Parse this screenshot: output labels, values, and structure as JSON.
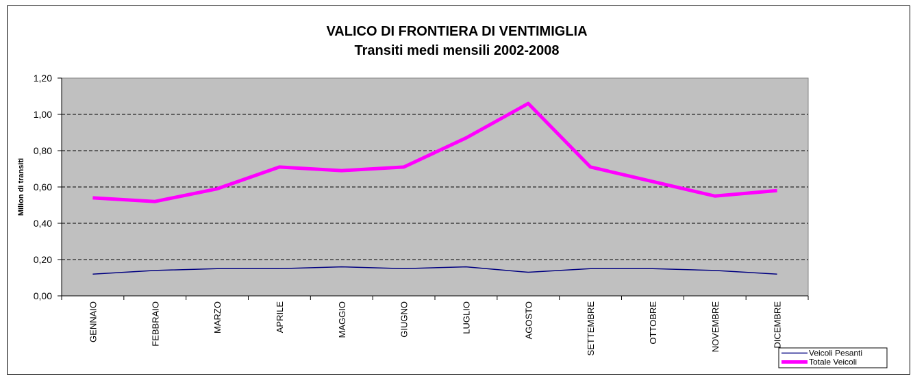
{
  "chart_data": {
    "type": "line",
    "title": "VALICO DI FRONTIERA DI VENTIMIGLIA",
    "subtitle": "Transiti medi mensili 2002-2008",
    "y_label": "Milion di transiti",
    "categories": [
      "GENNAIO",
      "FEBBRAIO",
      "MARZO",
      "APRILE",
      "MAGGIO",
      "GIUGNO",
      "LUGLIO",
      "AGOSTO",
      "SETTEMBRE",
      "OTTOBRE",
      "NOVEMBRE",
      "DICEMBRE"
    ],
    "series": [
      {
        "name": "Veicoli Pesanti",
        "color": "#000080",
        "values": [
          0.12,
          0.14,
          0.15,
          0.15,
          0.16,
          0.15,
          0.16,
          0.13,
          0.15,
          0.15,
          0.14,
          0.12
        ]
      },
      {
        "name": "Totale Veicoli",
        "color": "#ff00ff",
        "values": [
          0.54,
          0.52,
          0.59,
          0.71,
          0.69,
          0.71,
          0.87,
          1.06,
          0.71,
          0.63,
          0.55,
          0.58
        ]
      }
    ],
    "ylim": [
      0,
      1.2
    ],
    "yticks": [
      {
        "value": 0,
        "label": "0,00"
      },
      {
        "value": 0.2,
        "label": "0,20"
      },
      {
        "value": 0.4,
        "label": "0,40"
      },
      {
        "value": 0.6,
        "label": "0,60"
      },
      {
        "value": 0.8,
        "label": "0,80"
      },
      {
        "value": 1.0,
        "label": "1,00"
      },
      {
        "value": 1.2,
        "label": "1,20"
      }
    ],
    "grid": true,
    "legend": "bottom-right"
  }
}
